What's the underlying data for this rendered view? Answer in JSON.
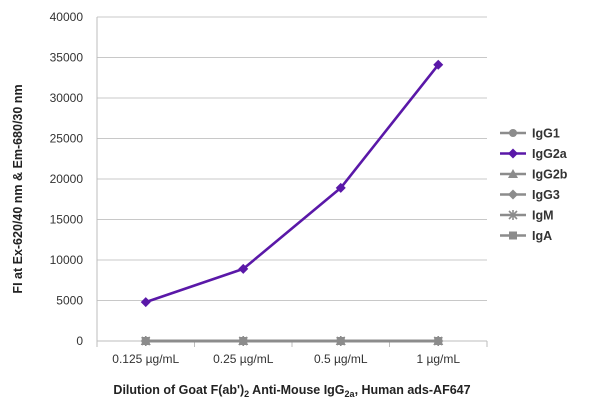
{
  "chart_data": {
    "type": "line",
    "title": "",
    "xlabel": "Dilution of Goat F(ab')2 Anti-Mouse IgG2a, Human ads-AF647",
    "xlabel_parts": [
      "Dilution of Goat F(ab')",
      "2",
      " Anti-Mouse IgG",
      "2a",
      ", Human ads-AF647"
    ],
    "ylabel": "FI at Ex-620/40 nm & Em-680/30 nm",
    "categories": [
      "0.125 µg/mL",
      "0.25 µg/mL",
      "0.5 µg/mL",
      "1 µg/mL"
    ],
    "ylim": [
      0,
      40000
    ],
    "yticks": [
      0,
      5000,
      10000,
      15000,
      20000,
      25000,
      30000,
      35000,
      40000
    ],
    "grid": "horizontal",
    "legend_position": "right",
    "series": [
      {
        "name": "IgG1",
        "values": [
          0,
          0,
          0,
          0
        ],
        "color": "#8c8c8c",
        "marker": "circle"
      },
      {
        "name": "IgG2a",
        "values": [
          4800,
          8900,
          18900,
          34100
        ],
        "color": "#5a18a8",
        "marker": "diamond"
      },
      {
        "name": "IgG2b",
        "values": [
          0,
          0,
          0,
          0
        ],
        "color": "#8c8c8c",
        "marker": "triangle"
      },
      {
        "name": "IgG3",
        "values": [
          0,
          0,
          0,
          0
        ],
        "color": "#8c8c8c",
        "marker": "diamond"
      },
      {
        "name": "IgM",
        "values": [
          0,
          0,
          0,
          0
        ],
        "color": "#8c8c8c",
        "marker": "asterisk"
      },
      {
        "name": "IgA",
        "values": [
          0,
          0,
          0,
          0
        ],
        "color": "#8c8c8c",
        "marker": "square"
      }
    ]
  }
}
